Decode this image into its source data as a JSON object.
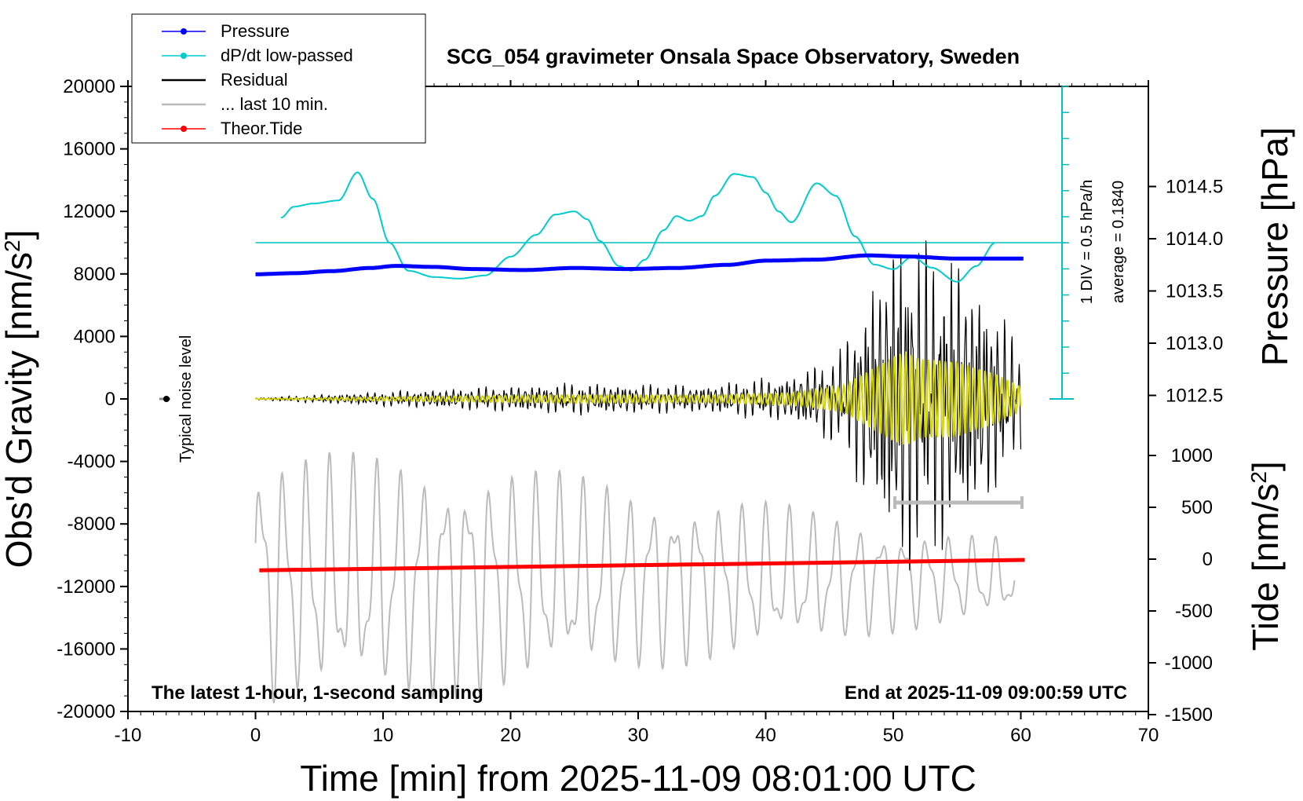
{
  "chart_data": {
    "type": "line",
    "title": "SCG_054 gravimeter Onsala Space Observatory, Sweden",
    "xlabel": "Time [min] from 2025-11-09 08:01:00 UTC",
    "xlim": [
      -10,
      70
    ],
    "xticks": [
      "-10",
      "0",
      "10",
      "20",
      "30",
      "40",
      "50",
      "60",
      "70"
    ],
    "y_left": {
      "label": "Obs'd Gravity [nm/s",
      "label_sup": "2",
      "label_end": "]",
      "ylim": [
        -20000,
        20000
      ],
      "ticks": [
        "20000",
        "16000",
        "12000",
        "8000",
        "4000",
        "0",
        "-4000",
        "-8000",
        "-12000",
        "-16000",
        "-20000"
      ]
    },
    "y_right_pressure": {
      "label": "Pressure [hPa]",
      "ticks": [
        "1014.5",
        "1014.0",
        "1013.5",
        "1013.0",
        "1012.5"
      ],
      "values": [
        1014.5,
        1014.0,
        1013.5,
        1013.0,
        1012.5
      ]
    },
    "y_right_tide": {
      "label": "Tide [nm/s",
      "label_sup": "2",
      "label_end": "]",
      "ticks": [
        "1000",
        "500",
        "0",
        "-500",
        "-1000",
        "-1500"
      ],
      "values": [
        1000,
        500,
        0,
        -500,
        -1000,
        -1500
      ]
    },
    "legend": [
      {
        "name": "Pressure",
        "color": "#0000ff",
        "marker": "dot"
      },
      {
        "name": "dP/dt low-passed",
        "color": "#00cccc",
        "marker": "dot"
      },
      {
        "name": "Residual",
        "color": "#000000",
        "marker": "line"
      },
      {
        "name": "... last 10 min.",
        "color": "#bbbbbb",
        "marker": "line"
      },
      {
        "name": "Theor.Tide",
        "color": "#ff0000",
        "marker": "dot"
      }
    ],
    "annotations": {
      "noise": "Typical noise level",
      "div": "1 DIV = 0.5 hPa/h",
      "average": "average = 0.1840",
      "latest": "The latest 1-hour, 1-second sampling",
      "end": "End at 2025-11-09 09:00:59 UTC"
    },
    "series": [
      {
        "name": "Pressure",
        "color": "#0000ff",
        "unit": "hPa",
        "x": [
          0,
          3,
          6,
          9,
          11,
          14,
          17,
          21,
          25,
          29,
          33,
          37,
          40,
          44,
          48,
          51,
          55,
          60.3
        ],
        "values": [
          1013.66,
          1013.67,
          1013.69,
          1013.72,
          1013.74,
          1013.73,
          1013.71,
          1013.7,
          1013.72,
          1013.71,
          1013.72,
          1013.75,
          1013.79,
          1013.8,
          1013.84,
          1013.83,
          1013.81,
          1013.81
        ]
      },
      {
        "name": "dP/dt low-passed",
        "color": "#00cccc",
        "unit": "hPa/h (plotted offset, 0 at -20000-scale y=10000)",
        "x": [
          2,
          3,
          4.5,
          6.5,
          8,
          9.2,
          10.5,
          12,
          14,
          16,
          18,
          20,
          22,
          23.5,
          25,
          26,
          27,
          28.5,
          29.5,
          30.5,
          32,
          33,
          34,
          35,
          36,
          37.5,
          39,
          40,
          41,
          42,
          44,
          45.5,
          47,
          48.5,
          50,
          51.5,
          53,
          55,
          56.5,
          58
        ],
        "values": [
          11600,
          12300,
          12500,
          12700,
          14500,
          12800,
          10000,
          8200,
          7800,
          7700,
          7900,
          9100,
          10500,
          11800,
          12000,
          11500,
          10100,
          8500,
          8200,
          8900,
          10800,
          11700,
          11400,
          11700,
          13000,
          14400,
          14200,
          13200,
          12000,
          11300,
          13800,
          13000,
          10400,
          8600,
          8300,
          9100,
          8400,
          7500,
          8500,
          10000
        ]
      },
      {
        "name": "Residual",
        "color": "#000000",
        "unit": "nm/s^2",
        "x": [
          0,
          14.5,
          25,
          35,
          42,
          46,
          48,
          50,
          51,
          52,
          55,
          58,
          60
        ],
        "amplitude": [
          60,
          500,
          800,
          700,
          1200,
          2500,
          5500,
          8500,
          9500,
          8000,
          7500,
          5000,
          2500
        ]
      },
      {
        "name": "... last 10 min.",
        "color": "#bbbbbb",
        "unit": "nm/s^2",
        "x": [
          0,
          10,
          20,
          30,
          40,
          50,
          60
        ],
        "amplitude": [
          8500,
          8000,
          7500,
          6000,
          5000,
          3500,
          2500
        ],
        "center": -11500
      }
    ],
    "theor_tide": {
      "name": "Theor.Tide",
      "color": "#ff0000",
      "unit": "nm/s^2",
      "x": [
        0.3,
        60.3
      ],
      "values": [
        -108,
        -8
      ]
    }
  }
}
